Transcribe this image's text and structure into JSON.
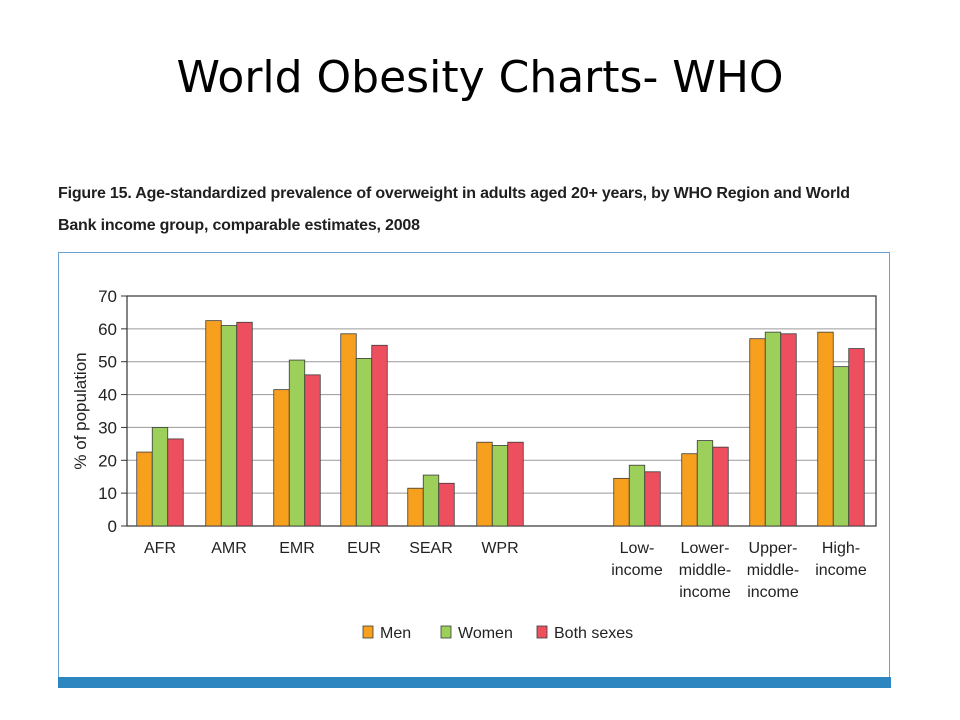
{
  "slide": {
    "title": "World Obesity Charts- WHO"
  },
  "figure": {
    "caption_line1": "Figure 15. Age-standardized prevalence of overweight in adults aged 20+ years, by WHO Region and World",
    "caption_line2": "Bank income group, comparable estimates, 2008"
  },
  "colors": {
    "men": "#f7a01e",
    "women": "#9cd05a",
    "both": "#ee4f5f",
    "frame": "#6a9fd4",
    "bar_bottom": "#2e86c1"
  },
  "chart_data": {
    "type": "bar",
    "ylabel": "% of population",
    "xlabel": "",
    "ylim": [
      0,
      70
    ],
    "yticks": [
      0,
      10,
      20,
      30,
      40,
      50,
      60,
      70
    ],
    "grid": true,
    "legend_position": "bottom-center",
    "groups": [
      {
        "label": [
          "AFR"
        ],
        "values": [
          22.5,
          30,
          26.5
        ]
      },
      {
        "label": [
          "AMR"
        ],
        "values": [
          62.5,
          61,
          62
        ]
      },
      {
        "label": [
          "EMR"
        ],
        "values": [
          41.5,
          50.5,
          46
        ]
      },
      {
        "label": [
          "EUR"
        ],
        "values": [
          58.5,
          51,
          55
        ]
      },
      {
        "label": [
          "SEAR"
        ],
        "values": [
          11.5,
          15.5,
          13
        ]
      },
      {
        "label": [
          "WPR"
        ],
        "values": [
          25.5,
          24.5,
          25.5
        ]
      },
      {
        "label": [
          "Low-",
          "income"
        ],
        "values": [
          14.5,
          18.5,
          16.5
        ]
      },
      {
        "label": [
          "Lower-",
          "middle-",
          "income"
        ],
        "values": [
          22,
          26,
          24
        ]
      },
      {
        "label": [
          "Upper-",
          "middle-",
          "income"
        ],
        "values": [
          57,
          59,
          58.5
        ]
      },
      {
        "label": [
          "High-",
          "income"
        ],
        "values": [
          59,
          48.5,
          54
        ]
      }
    ],
    "series": [
      {
        "name": "Men"
      },
      {
        "name": "Women"
      },
      {
        "name": "Both sexes"
      }
    ]
  }
}
